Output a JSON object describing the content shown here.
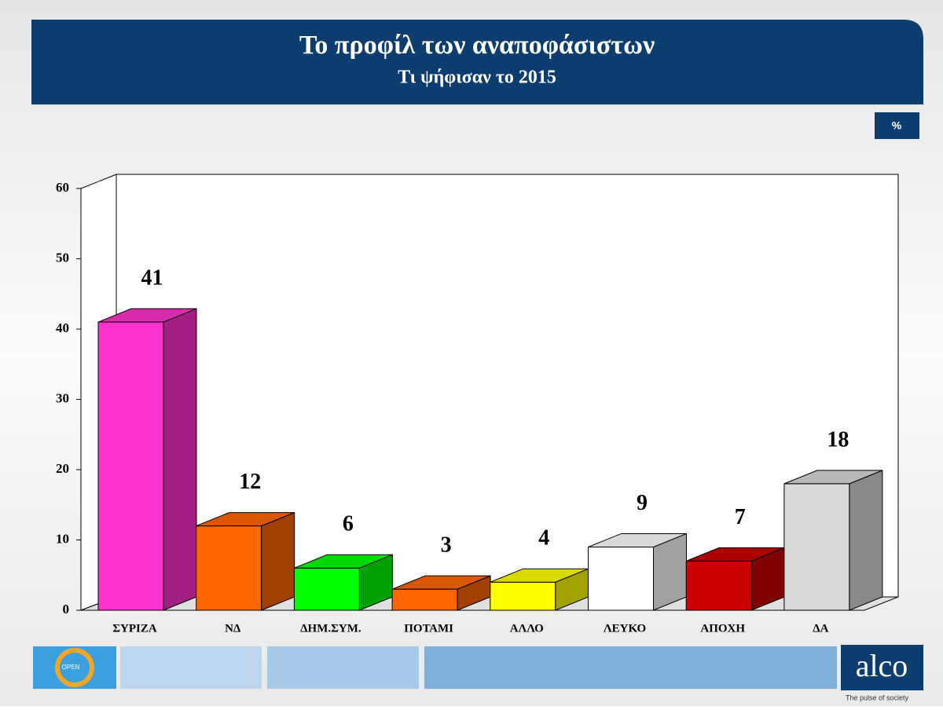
{
  "chart_data": {
    "type": "bar3d",
    "title": "Το προφίλ των αναποφάσιστων",
    "subtitle": "Τι ψήφισαν το 2015",
    "unit_label": "%",
    "categories": [
      "ΣΥΡΙΖΑ",
      "ΝΔ",
      "ΔΗΜ.ΣΥΜ.",
      "ΠΟΤΑΜΙ",
      "ΑΛΛΟ",
      "ΛΕΥΚΟ",
      "ΑΠΟΧΗ",
      "ΔΑ"
    ],
    "values": [
      41,
      12,
      6,
      3,
      4,
      9,
      7,
      18
    ],
    "colors": [
      "#ff33cc",
      "#ff6600",
      "#00ff00",
      "#ff6600",
      "#ffff00",
      "#ffffff",
      "#cc0000",
      "#d9d9d9"
    ],
    "ylim": [
      0,
      60
    ],
    "yticks": [
      0,
      10,
      20,
      30,
      40,
      50,
      60
    ]
  },
  "footer": {
    "left_logo": "OPEN",
    "right_logo": "alco",
    "tagline": "The pulse of society"
  }
}
